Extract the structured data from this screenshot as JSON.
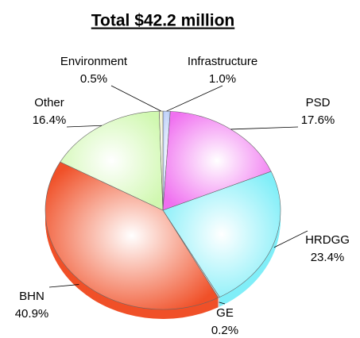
{
  "chart_data": {
    "type": "pie",
    "title": "Total $42.2 million",
    "categories": [
      "Infrastructure",
      "PSD",
      "HRDGG",
      "GE",
      "BHN",
      "Other",
      "Environment"
    ],
    "values": [
      1.0,
      17.6,
      23.4,
      0.2,
      40.9,
      16.4,
      0.5
    ],
    "value_labels": [
      "1.0%",
      "17.6%",
      "23.4%",
      "0.2%",
      "40.9%",
      "16.4%",
      "0.5%"
    ],
    "colors": [
      "#b8ccf8",
      "#f070f0",
      "#80eef8",
      "#d8d8d8",
      "#f05028",
      "#d0f8b0",
      "#f0f0c8"
    ]
  }
}
